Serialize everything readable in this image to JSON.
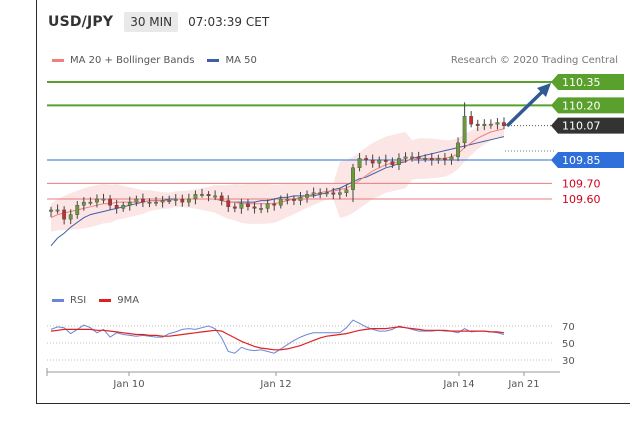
{
  "header": {
    "symbol": "USD/JPY",
    "timeframe": "30 MIN",
    "time": "07:03:39 CET"
  },
  "legend": {
    "ma20": {
      "label": "MA 20 + Bollinger Bands",
      "color": "#f08080"
    },
    "ma50": {
      "label": "MA 50",
      "color": "#3d5fa8"
    },
    "credit": "Research © 2020 Trading Central"
  },
  "rsi_legend": {
    "rsi": {
      "label": "RSI",
      "color": "#6b86d6"
    },
    "ma9": {
      "label": "9MA",
      "color": "#e02020"
    }
  },
  "levels": [
    {
      "value": "110.35",
      "kind": "resistance",
      "tag": true,
      "color": "#5aa02c",
      "text_color": "#ffffff"
    },
    {
      "value": "110.20",
      "kind": "resistance",
      "tag": true,
      "color": "#5aa02c",
      "text_color": "#ffffff"
    },
    {
      "value": "110.07",
      "kind": "last",
      "tag": true,
      "color": "#333333",
      "text_color": "#ffffff"
    },
    {
      "value": "109.85",
      "kind": "pivot",
      "tag": true,
      "color": "#2e6fd9",
      "text_color": "#ffffff"
    },
    {
      "value": "109.70",
      "kind": "support",
      "tag": false,
      "color": "#e87c7c",
      "text_color": "#d0021b"
    },
    {
      "value": "109.60",
      "kind": "support",
      "tag": false,
      "color": "#e87c7c",
      "text_color": "#d0021b"
    }
  ],
  "chart_data": [
    {
      "type": "candlestick",
      "symbol": "USD/JPY",
      "timeframe": "30 MIN",
      "ylim": [
        109.28,
        110.42
      ],
      "x_ticks": [
        "Jan 10",
        "Jan 12",
        "Jan 14",
        "Jan 21"
      ],
      "closes": [
        109.53,
        109.53,
        109.47,
        109.5,
        109.56,
        109.58,
        109.58,
        109.6,
        109.6,
        109.56,
        109.54,
        109.56,
        109.58,
        109.6,
        109.58,
        109.58,
        109.58,
        109.59,
        109.59,
        109.6,
        109.58,
        109.6,
        109.63,
        109.63,
        109.62,
        109.62,
        109.59,
        109.55,
        109.54,
        109.57,
        109.55,
        109.54,
        109.54,
        109.57,
        109.56,
        109.6,
        109.6,
        109.59,
        109.61,
        109.63,
        109.64,
        109.64,
        109.64,
        109.63,
        109.64,
        109.66,
        109.8,
        109.86,
        109.85,
        109.83,
        109.85,
        109.84,
        109.82,
        109.86,
        109.87,
        109.87,
        109.86,
        109.86,
        109.85,
        109.86,
        109.85,
        109.87,
        109.96,
        110.13,
        110.08,
        110.07,
        110.08,
        110.08,
        110.09,
        110.07
      ],
      "ma20": [
        109.48,
        109.5,
        109.51,
        109.52,
        109.53,
        109.54,
        109.55,
        109.56,
        109.57,
        109.57,
        109.58,
        109.58,
        109.58,
        109.58,
        109.58,
        109.59,
        109.59,
        109.59,
        109.59,
        109.6,
        109.6,
        109.6,
        109.6,
        109.6,
        109.6,
        109.6,
        109.59,
        109.58,
        109.58,
        109.57,
        109.57,
        109.57,
        109.57,
        109.57,
        109.57,
        109.58,
        109.59,
        109.6,
        109.61,
        109.62,
        109.63,
        109.64,
        109.65,
        109.65,
        109.66,
        109.67,
        109.69,
        109.72,
        109.75,
        109.78,
        109.8,
        109.82,
        109.83,
        109.84,
        109.85,
        109.85,
        109.86,
        109.86,
        109.86,
        109.86,
        109.86,
        109.87,
        109.89,
        109.93,
        109.96,
        109.99,
        110.01,
        110.03,
        110.04,
        110.05
      ],
      "ma50": [
        109.3,
        109.35,
        109.38,
        109.42,
        109.45,
        109.48,
        109.5,
        109.51,
        109.52,
        109.53,
        109.54,
        109.55,
        109.56,
        109.57,
        109.58,
        109.59,
        109.59,
        109.59,
        109.6,
        109.6,
        109.6,
        109.6,
        109.6,
        109.6,
        109.6,
        109.6,
        109.59,
        109.58,
        109.58,
        109.58,
        109.58,
        109.58,
        109.59,
        109.59,
        109.6,
        109.61,
        109.61,
        109.62,
        109.62,
        109.62,
        109.62,
        109.63,
        109.64,
        109.66,
        109.67,
        109.69,
        109.71,
        109.73,
        109.74,
        109.76,
        109.78,
        109.8,
        109.81,
        109.83,
        109.84,
        109.86,
        109.87,
        109.88,
        109.89,
        109.9,
        109.91,
        109.92,
        109.93,
        109.94,
        109.95,
        109.96,
        109.97,
        109.98,
        109.99,
        110.0
      ]
    },
    {
      "type": "line",
      "name_ref": "rsi",
      "ylim": [
        20,
        90
      ],
      "y_ticks": [
        70,
        50,
        30
      ],
      "rsi": [
        66,
        69,
        68,
        61,
        66,
        71,
        68,
        62,
        66,
        57,
        62,
        60,
        59,
        58,
        59,
        58,
        57,
        57,
        61,
        63,
        66,
        67,
        66,
        68,
        70,
        67,
        56,
        40,
        38,
        45,
        42,
        41,
        42,
        40,
        38,
        43,
        48,
        53,
        57,
        60,
        62,
        62,
        62,
        62,
        62,
        68,
        77,
        73,
        69,
        66,
        64,
        64,
        66,
        70,
        68,
        66,
        64,
        64,
        64,
        65,
        64,
        64,
        62,
        67,
        63,
        64,
        64,
        63,
        62,
        60
      ],
      "ma9": [
        64,
        65,
        66,
        66,
        66,
        66,
        66,
        65,
        65,
        64,
        63,
        62,
        61,
        60,
        60,
        59,
        59,
        58,
        58,
        59,
        60,
        61,
        62,
        63,
        64,
        65,
        64,
        60,
        56,
        52,
        49,
        46,
        44,
        43,
        42,
        42,
        43,
        45,
        47,
        50,
        53,
        56,
        58,
        59,
        60,
        61,
        63,
        65,
        66,
        67,
        67,
        67,
        68,
        69,
        68,
        67,
        66,
        65,
        65,
        65,
        65,
        64,
        64,
        64,
        64,
        64,
        64,
        63,
        63,
        62
      ]
    }
  ]
}
